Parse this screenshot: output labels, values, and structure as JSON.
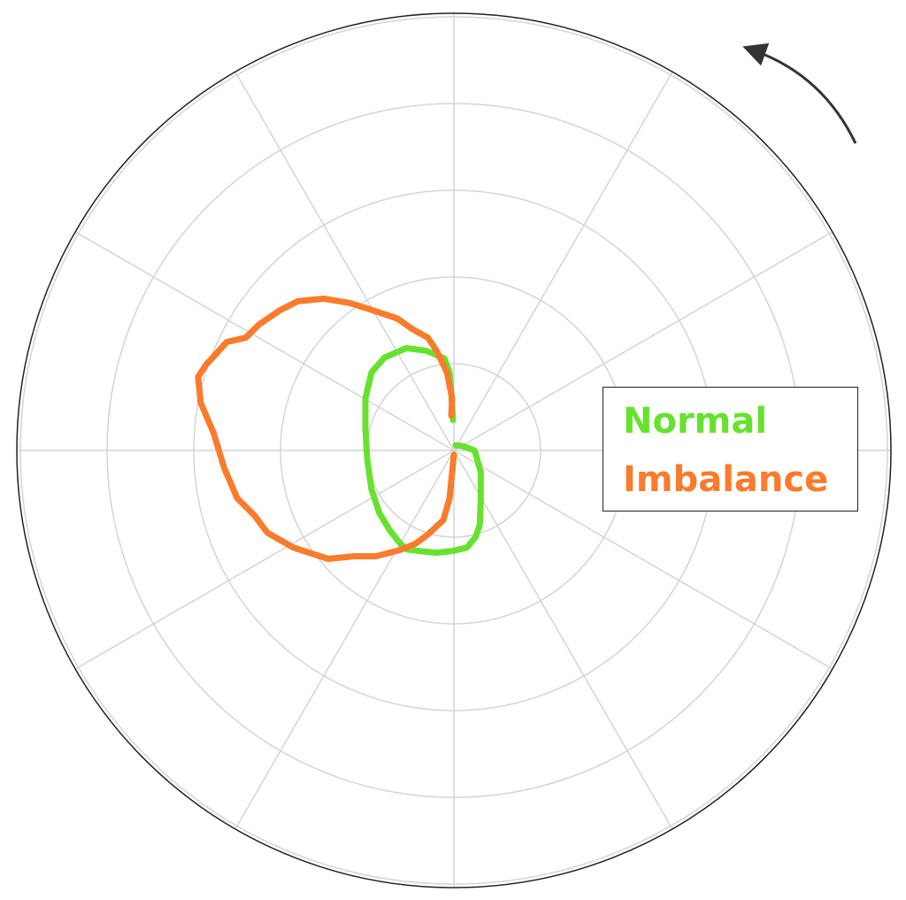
{
  "chart_data": {
    "type": "polar-line",
    "radial_rings": 5,
    "angular_spokes": 12,
    "grid": true,
    "legend": "right",
    "rotation_direction": "counter-clockwise",
    "series": [
      {
        "name": "Normal",
        "color": "#66e22e",
        "points": [
          [
            -0.01,
            0.35
          ],
          [
            -0.03,
            0.65
          ],
          [
            -0.05,
            0.9
          ],
          [
            -0.11,
            1.06
          ],
          [
            -0.2,
            1.1
          ],
          [
            -0.32,
            1.15
          ],
          [
            -0.55,
            1.18
          ],
          [
            -0.8,
            1.07
          ],
          [
            -0.95,
            0.9
          ],
          [
            -1.02,
            0.6
          ],
          [
            -1.02,
            0.25
          ],
          [
            -1.0,
            -0.1
          ],
          [
            -0.95,
            -0.45
          ],
          [
            -0.86,
            -0.72
          ],
          [
            -0.74,
            -0.92
          ],
          [
            -0.63,
            -1.06
          ],
          [
            -0.55,
            -1.14
          ],
          [
            -0.4,
            -1.16
          ],
          [
            -0.2,
            -1.18
          ],
          [
            -0.02,
            -1.16
          ],
          [
            0.15,
            -1.12
          ],
          [
            0.25,
            -1.0
          ],
          [
            0.3,
            -0.85
          ],
          [
            0.31,
            -0.55
          ],
          [
            0.31,
            -0.25
          ],
          [
            0.24,
            0.0
          ],
          [
            0.1,
            0.05
          ],
          [
            0.02,
            0.06
          ]
        ]
      },
      {
        "name": "Imbalance",
        "color": "#f97b2b",
        "points": [
          [
            0.0,
            -0.05
          ],
          [
            -0.05,
            -0.55
          ],
          [
            -0.12,
            -0.8
          ],
          [
            -0.3,
            -0.97
          ],
          [
            -0.45,
            -1.08
          ],
          [
            -0.63,
            -1.15
          ],
          [
            -0.9,
            -1.22
          ],
          [
            -1.15,
            -1.22
          ],
          [
            -1.45,
            -1.25
          ],
          [
            -1.85,
            -1.12
          ],
          [
            -2.15,
            -0.95
          ],
          [
            -2.3,
            -0.75
          ],
          [
            -2.5,
            -0.55
          ],
          [
            -2.65,
            -0.2
          ],
          [
            -2.77,
            0.2
          ],
          [
            -2.92,
            0.55
          ],
          [
            -2.95,
            0.85
          ],
          [
            -2.85,
            1.0
          ],
          [
            -2.8,
            1.05
          ],
          [
            -2.62,
            1.25
          ],
          [
            -2.4,
            1.3
          ],
          [
            -2.25,
            1.45
          ],
          [
            -2.0,
            1.62
          ],
          [
            -1.8,
            1.72
          ],
          [
            -1.5,
            1.75
          ],
          [
            -1.2,
            1.7
          ],
          [
            -0.95,
            1.62
          ],
          [
            -0.65,
            1.52
          ],
          [
            -0.48,
            1.4
          ],
          [
            -0.3,
            1.3
          ],
          [
            -0.2,
            1.15
          ],
          [
            -0.08,
            0.9
          ],
          [
            -0.02,
            0.6
          ],
          [
            -0.03,
            0.4
          ]
        ]
      }
    ]
  }
}
